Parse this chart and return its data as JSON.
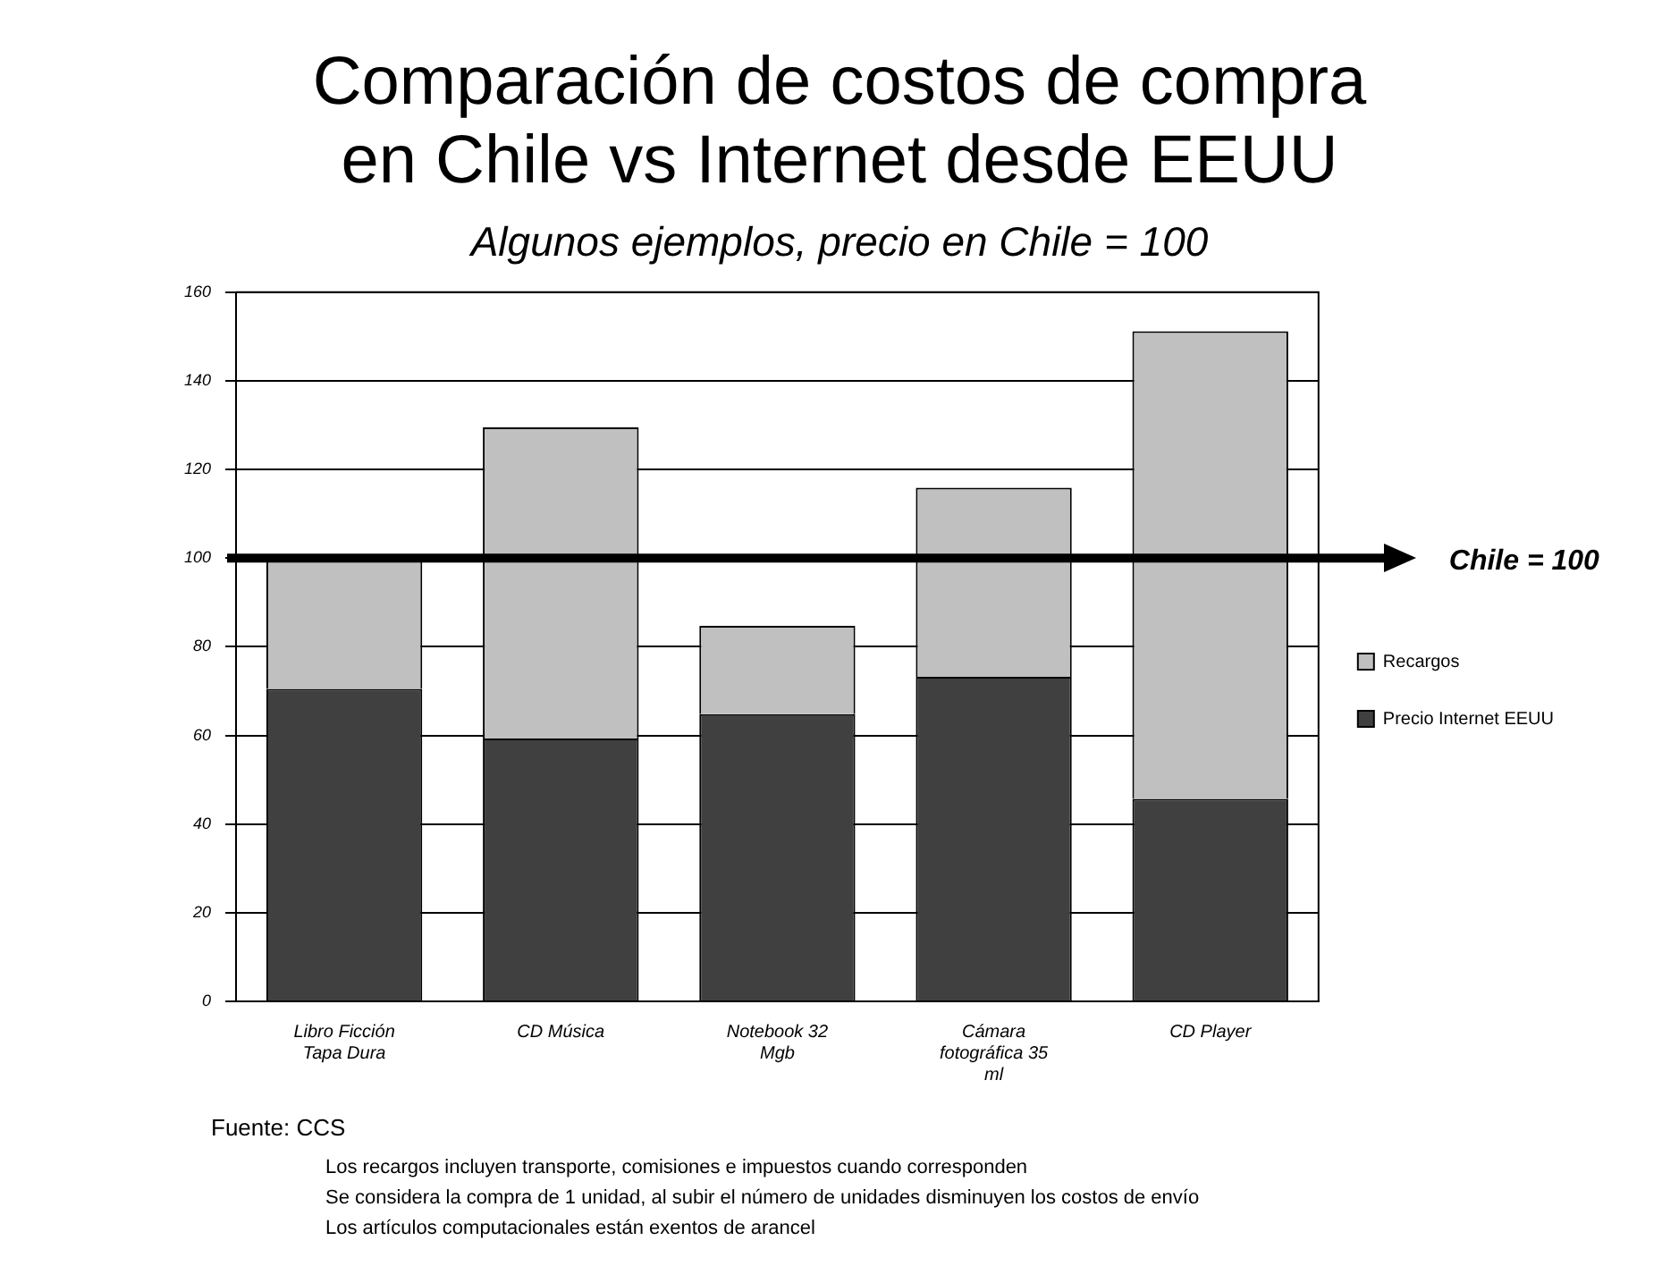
{
  "chart_data": {
    "type": "bar",
    "title": "Comparación de costos de compra en Chile vs Internet desde EEUU",
    "subtitle": "Algunos ejemplos, precio en Chile = 100",
    "categories": [
      "Libro Ficción Tapa Dura",
      "CD Música",
      "Notebook 32 Mgb",
      "Cámara fotográfica 35 ml",
      "CD Player"
    ],
    "series": [
      {
        "name": "Precio Internet EEUU",
        "color": "#404040",
        "values": [
          70.5,
          59.3,
          64.8,
          73.2,
          45.7
        ]
      },
      {
        "name": "Recargos",
        "color": "#c0c0c0",
        "values": [
          29.5,
          70.2,
          19.9,
          42.7,
          105.5
        ]
      }
    ],
    "stacked": true,
    "ylim": [
      0,
      160
    ],
    "yticks": [
      0,
      20,
      40,
      60,
      80,
      100,
      120,
      140,
      160
    ],
    "grid": "y",
    "legend": "right",
    "ref_lines": [
      {
        "axis": "y",
        "value": 100,
        "label": "Chile = 100",
        "color": "#000000"
      }
    ],
    "annotations": [
      "Fuente:  CCS",
      "Los recargos incluyen transporte, comisiones e impuestos cuando corresponden",
      "Se considera la compra de 1 unidad, al subir el número de unidades disminuyen los costos de envío",
      "Los artículos computacionales están exentos de arancel"
    ]
  }
}
